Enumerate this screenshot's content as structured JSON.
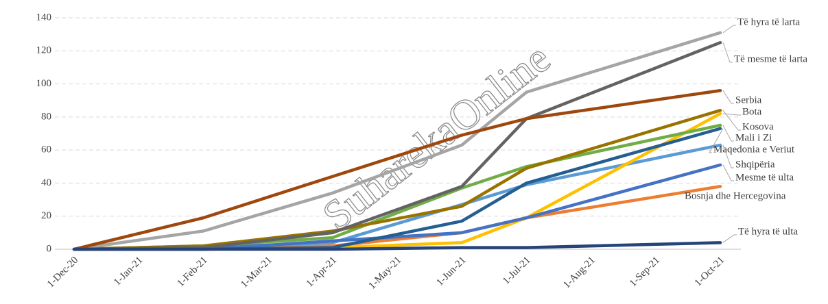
{
  "chart_data": {
    "type": "line",
    "watermark": "SuharekaOnline",
    "x": [
      "1-Dec-20",
      "1-Feb-21",
      "1-Apr-21",
      "1-Jun-21",
      "1-Jul-21",
      "1-Oct-21"
    ],
    "xlim": [
      "1-Dec-20",
      "1-Oct-21"
    ],
    "xticks": [
      "1-Dec-20",
      "1-Jan-21",
      "1-Feb-21",
      "1-Mar-21",
      "1-Apr-21",
      "1-May-21",
      "1-Jun-21",
      "1-Jul-21",
      "1-Aug-21",
      "1-Sep-21",
      "1-Oct-21"
    ],
    "ylim": [
      0,
      140
    ],
    "yticks": [
      0,
      20,
      40,
      60,
      80,
      100,
      120,
      140
    ],
    "grid": true,
    "series": [
      {
        "name": "Të hyra të larta",
        "color": "#a5a5a5",
        "values": [
          0,
          11,
          34,
          63,
          95,
          131
        ]
      },
      {
        "name": "Të mesme të larta",
        "color": "#636363",
        "values": [
          0,
          1,
          10,
          38,
          79,
          125
        ]
      },
      {
        "name": "Serbia",
        "color": "#9e480e",
        "values": [
          0,
          19,
          44,
          69,
          79,
          96
        ]
      },
      {
        "name": "Bota",
        "color": "#ffc000",
        "values": [
          0,
          0,
          1,
          4,
          19,
          82
        ]
      },
      {
        "name": "Kosova",
        "color": "#997300",
        "values": [
          0,
          2,
          11,
          26,
          49,
          84
        ]
      },
      {
        "name": "Mali i Zi",
        "color": "#70ad47",
        "values": [
          0,
          2,
          7,
          37,
          50,
          75
        ]
      },
      {
        "name": "Maqedonia e Veriut",
        "color": "#255e91",
        "values": [
          0,
          0,
          1,
          17,
          40,
          73
        ]
      },
      {
        "name": "Shqipëria",
        "color": "#5b9bd5",
        "values": [
          0,
          1,
          4,
          27,
          39,
          63
        ]
      },
      {
        "name": "Mesme të ulta",
        "color": "#4472c4",
        "values": [
          0,
          0,
          5,
          10,
          19,
          51
        ]
      },
      {
        "name": "Bosnja dhe Hercegovina",
        "color": "#ed7d31",
        "values": [
          0,
          0,
          2,
          10,
          19,
          38
        ]
      },
      {
        "name": "Të hyra të ulta",
        "color": "#264478",
        "values": [
          0,
          0,
          0,
          1,
          1,
          4
        ]
      }
    ]
  }
}
